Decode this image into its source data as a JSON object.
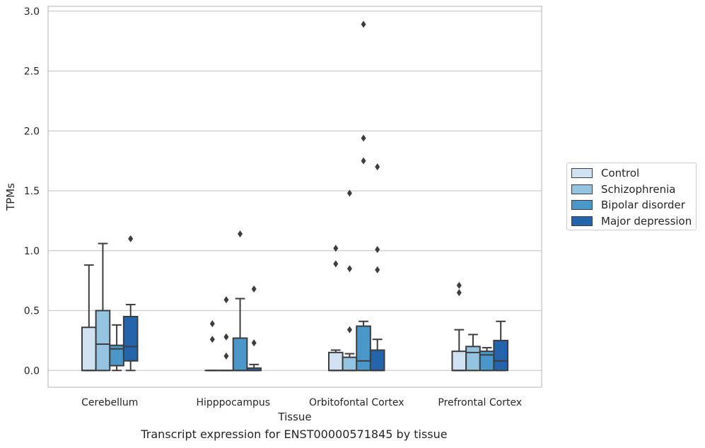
{
  "chart_data": {
    "type": "box",
    "title": "",
    "caption": "Transcript expression for ENST00000571845 by tissue",
    "xlabel": "Tissue",
    "ylabel": "TPMs",
    "ylim": [
      -0.14,
      3.04
    ],
    "yticks": [
      "0.0",
      "0.5",
      "1.0",
      "1.5",
      "2.0",
      "2.5",
      "3.0"
    ],
    "grid": "horizontal",
    "legend_position": "right",
    "categories": [
      "Cerebellum",
      "Hipppocampus",
      "Orbitofontal Cortex",
      "Prefrontal Cortex"
    ],
    "series": [
      {
        "name": "Control",
        "color": "#d0e1f2",
        "boxes": [
          {
            "whislo": 0.0,
            "q1": 0.0,
            "med": 0.0,
            "q3": 0.36,
            "whishi": 0.88,
            "fliers": []
          },
          {
            "whislo": 0.0,
            "q1": 0.0,
            "med": 0.0,
            "q3": 0.0,
            "whishi": 0.0,
            "fliers": [
              0.39,
              0.26
            ]
          },
          {
            "whislo": 0.0,
            "q1": 0.0,
            "med": 0.0,
            "q3": 0.15,
            "whishi": 0.17,
            "fliers": [
              1.02,
              0.89
            ]
          },
          {
            "whislo": 0.0,
            "q1": 0.0,
            "med": 0.0,
            "q3": 0.16,
            "whishi": 0.34,
            "fliers": [
              0.71,
              0.65
            ]
          }
        ]
      },
      {
        "name": "Schizophrenia",
        "color": "#94c4df",
        "boxes": [
          {
            "whislo": 0.0,
            "q1": 0.0,
            "med": 0.22,
            "q3": 0.5,
            "whishi": 1.06,
            "fliers": []
          },
          {
            "whislo": 0.0,
            "q1": 0.0,
            "med": 0.0,
            "q3": 0.0,
            "whishi": 0.0,
            "fliers": [
              0.59,
              0.28,
              0.12
            ]
          },
          {
            "whislo": 0.0,
            "q1": 0.0,
            "med": 0.0,
            "q3": 0.11,
            "whishi": 0.14,
            "fliers": [
              1.48,
              0.85,
              0.34
            ]
          },
          {
            "whislo": 0.0,
            "q1": 0.0,
            "med": 0.15,
            "q3": 0.2,
            "whishi": 0.3,
            "fliers": []
          }
        ]
      },
      {
        "name": "Bipolar disorder",
        "color": "#4a98c9",
        "boxes": [
          {
            "whislo": 0.0,
            "q1": 0.04,
            "med": 0.18,
            "q3": 0.21,
            "whishi": 0.38,
            "fliers": []
          },
          {
            "whislo": 0.0,
            "q1": 0.0,
            "med": 0.0,
            "q3": 0.27,
            "whishi": 0.6,
            "fliers": [
              1.14
            ]
          },
          {
            "whislo": 0.0,
            "q1": 0.0,
            "med": 0.08,
            "q3": 0.37,
            "whishi": 0.41,
            "fliers": [
              2.89,
              1.94,
              1.75
            ]
          },
          {
            "whislo": 0.0,
            "q1": 0.0,
            "med": 0.13,
            "q3": 0.16,
            "whishi": 0.19,
            "fliers": []
          }
        ]
      },
      {
        "name": "Major depression",
        "color": "#2464ab",
        "boxes": [
          {
            "whislo": 0.0,
            "q1": 0.08,
            "med": 0.2,
            "q3": 0.45,
            "whishi": 0.55,
            "fliers": [
              1.1
            ]
          },
          {
            "whislo": 0.0,
            "q1": 0.0,
            "med": 0.0,
            "q3": 0.02,
            "whishi": 0.05,
            "fliers": [
              0.68,
              0.23
            ]
          },
          {
            "whislo": 0.0,
            "q1": 0.0,
            "med": 0.0,
            "q3": 0.17,
            "whishi": 0.26,
            "fliers": [
              1.7,
              1.01,
              0.84
            ]
          },
          {
            "whislo": 0.0,
            "q1": 0.0,
            "med": 0.08,
            "q3": 0.25,
            "whishi": 0.41,
            "fliers": []
          }
        ]
      }
    ]
  }
}
